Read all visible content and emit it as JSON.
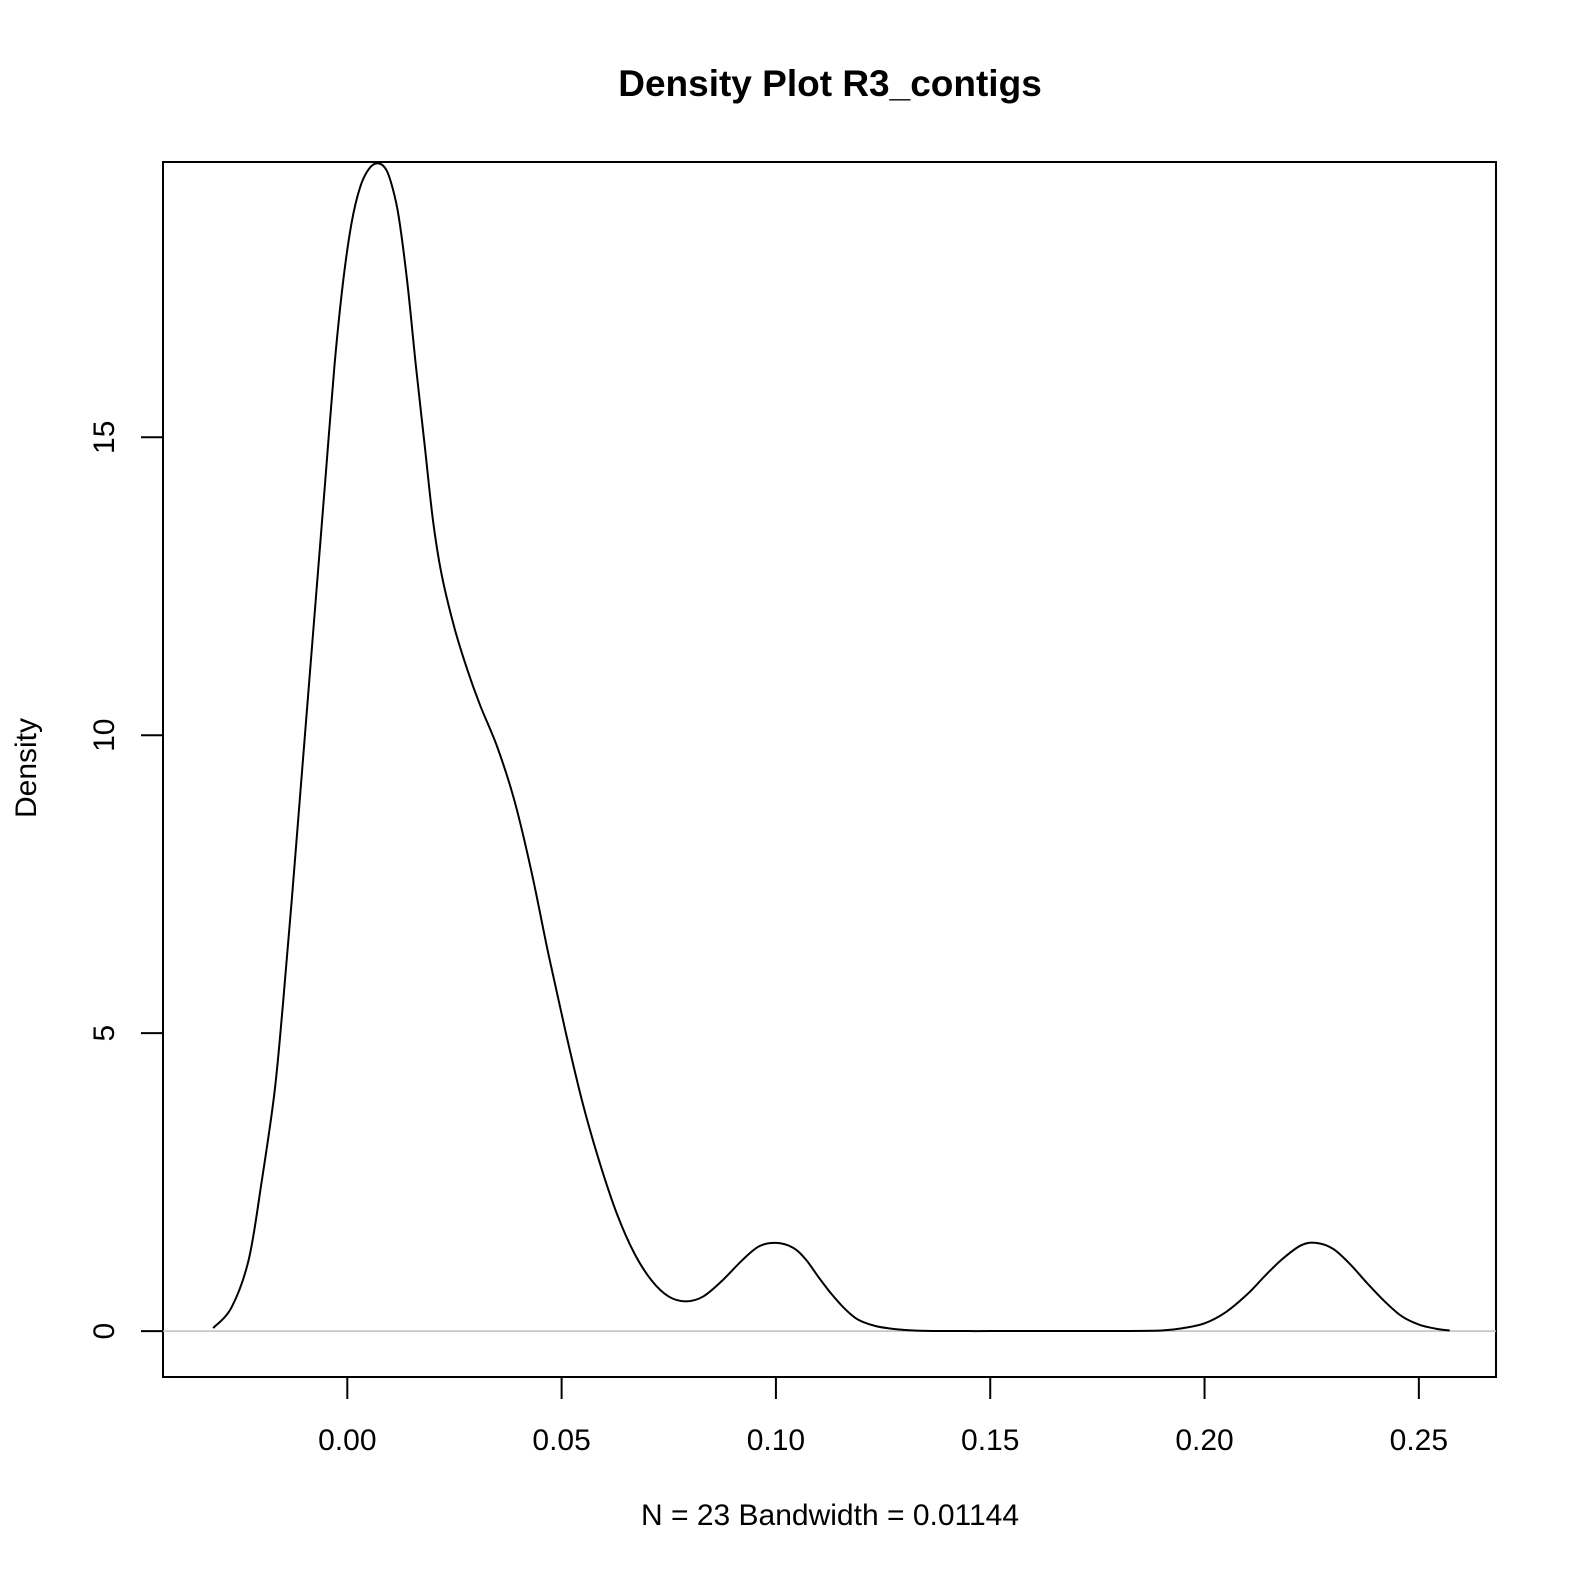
{
  "chart_data": {
    "type": "line",
    "title": "Density Plot R3_contigs",
    "xlabel": "N = 23   Bandwidth = 0.01144",
    "ylabel": "Density",
    "xlim": [
      -0.043,
      0.268
    ],
    "ylim": [
      -0.77,
      19.62
    ],
    "grid": false,
    "legend": "none",
    "xticks": [
      0.0,
      0.05,
      0.1,
      0.15,
      0.2,
      0.25
    ],
    "xtick_labels": [
      "0.00",
      "0.05",
      "0.10",
      "0.15",
      "0.20",
      "0.25"
    ],
    "yticks": [
      0,
      5,
      10,
      15
    ],
    "ytick_labels": [
      "0",
      "5",
      "10",
      "15"
    ],
    "baseline": {
      "y": 0,
      "color": "#bebebe"
    },
    "series": [
      {
        "color": "#000000",
        "x": [
          -0.0313,
          -0.027,
          -0.023,
          -0.02,
          -0.017,
          -0.015,
          -0.013,
          -0.011,
          -0.009,
          -0.007,
          -0.005,
          -0.003,
          -0.001,
          0.001,
          0.003,
          0.005,
          0.007,
          0.009,
          0.0105,
          0.012,
          0.014,
          0.016,
          0.018,
          0.02,
          0.022,
          0.025,
          0.028,
          0.031,
          0.035,
          0.039,
          0.043,
          0.047,
          0.051,
          0.055,
          0.059,
          0.063,
          0.067,
          0.071,
          0.075,
          0.079,
          0.083,
          0.0875,
          0.092,
          0.096,
          0.1,
          0.104,
          0.107,
          0.11,
          0.113,
          0.116,
          0.119,
          0.123,
          0.127,
          0.131,
          0.135,
          0.14,
          0.145,
          0.15,
          0.16,
          0.17,
          0.18,
          0.19,
          0.195,
          0.2,
          0.205,
          0.21,
          0.214,
          0.218,
          0.2225,
          0.226,
          0.23,
          0.234,
          0.238,
          0.242,
          0.246,
          0.25,
          0.254,
          0.2572
        ],
        "y": [
          0.05,
          0.4,
          1.2,
          2.5,
          4.0,
          5.5,
          7.2,
          9.0,
          10.8,
          12.6,
          14.4,
          16.2,
          17.6,
          18.6,
          19.2,
          19.5,
          19.6,
          19.5,
          19.2,
          18.7,
          17.6,
          16.2,
          14.9,
          13.6,
          12.7,
          11.8,
          11.1,
          10.5,
          9.8,
          8.9,
          7.7,
          6.3,
          5.0,
          3.8,
          2.8,
          1.95,
          1.3,
          0.85,
          0.58,
          0.5,
          0.58,
          0.85,
          1.18,
          1.42,
          1.48,
          1.4,
          1.2,
          0.9,
          0.62,
          0.38,
          0.2,
          0.09,
          0.04,
          0.015,
          0.005,
          0.002,
          0.001,
          0.001,
          0.001,
          0.001,
          0.002,
          0.01,
          0.05,
          0.13,
          0.32,
          0.62,
          0.92,
          1.2,
          1.44,
          1.48,
          1.38,
          1.12,
          0.8,
          0.5,
          0.25,
          0.11,
          0.04,
          0.01
        ]
      }
    ]
  }
}
